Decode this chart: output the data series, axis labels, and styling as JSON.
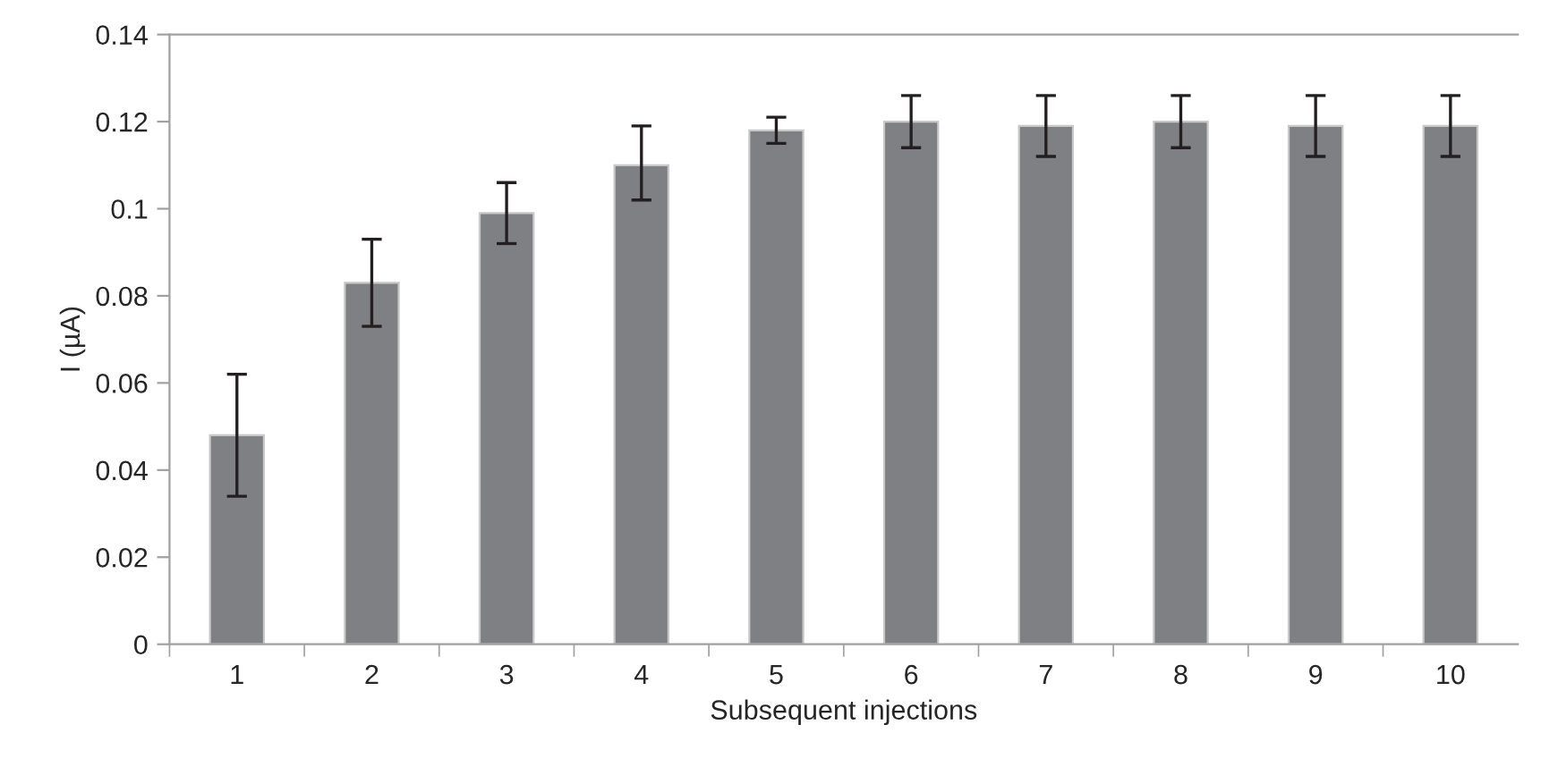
{
  "chart_data": {
    "type": "bar",
    "xlabel": "Subsequent injections",
    "ylabel": "I (µA)",
    "categories": [
      "1",
      "2",
      "3",
      "4",
      "5",
      "6",
      "7",
      "8",
      "9",
      "10"
    ],
    "series": [
      {
        "color": "#7f8084",
        "values": [
          0.048,
          0.083,
          0.099,
          0.11,
          0.118,
          0.12,
          0.119,
          0.12,
          0.119,
          0.119
        ],
        "errors": [
          [
            0.034,
            0.062
          ],
          [
            0.073,
            0.093
          ],
          [
            0.092,
            0.106
          ],
          [
            0.102,
            0.119
          ],
          [
            0.115,
            0.121
          ],
          [
            0.114,
            0.126
          ],
          [
            0.112,
            0.126
          ],
          [
            0.114,
            0.126
          ],
          [
            0.112,
            0.126
          ],
          [
            0.112,
            0.126
          ]
        ]
      }
    ],
    "ylim": [
      0,
      0.14
    ],
    "yticks": [
      {
        "value": 0,
        "label": "0"
      },
      0.02,
      0.04,
      0.06,
      0.08,
      {
        "value": 0.1,
        "label": "0.1"
      },
      0.12,
      0.14
    ],
    "grid": false,
    "legend": false
  }
}
